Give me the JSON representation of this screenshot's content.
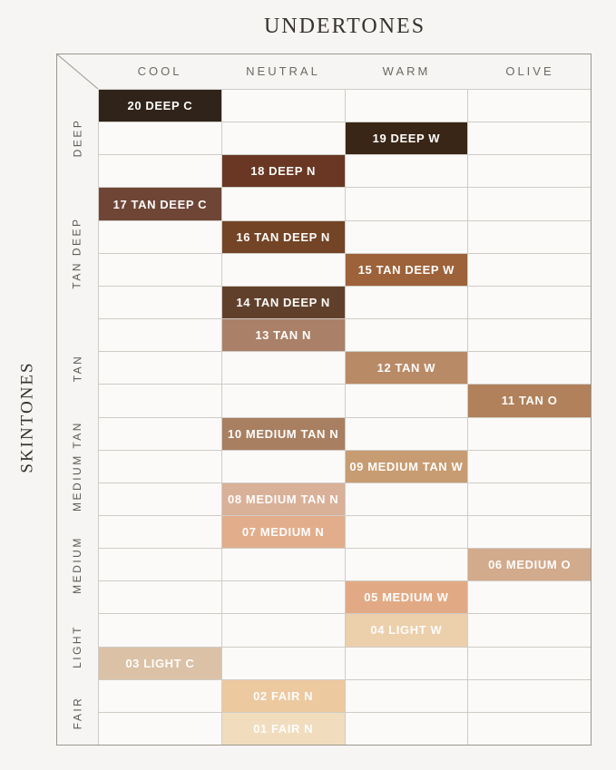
{
  "title": "UNDERTONES",
  "side_label": "SKINTONES",
  "chart_data": {
    "type": "heatmap",
    "title": "UNDERTONES",
    "ylabel": "SKINTONES",
    "columns": [
      "COOL",
      "NEUTRAL",
      "WARM",
      "OLIVE"
    ],
    "row_groups": [
      {
        "label": "DEEP",
        "rows": 3
      },
      {
        "label": "TAN DEEP",
        "rows": 4
      },
      {
        "label": "TAN",
        "rows": 3
      },
      {
        "label": "MEDIUM TAN",
        "rows": 3
      },
      {
        "label": "MEDIUM",
        "rows": 3
      },
      {
        "label": "LIGHT",
        "rows": 2
      },
      {
        "label": "FAIR",
        "rows": 2
      }
    ],
    "shades": [
      {
        "row": 1,
        "label": "20 DEEP C",
        "undertone": "COOL",
        "group": "DEEP",
        "color": "#30231a"
      },
      {
        "row": 2,
        "label": "19 DEEP W",
        "undertone": "WARM",
        "group": "DEEP",
        "color": "#3a2616"
      },
      {
        "row": 3,
        "label": "18 DEEP N",
        "undertone": "NEUTRAL",
        "group": "DEEP",
        "color": "#693723"
      },
      {
        "row": 4,
        "label": "17 TAN DEEP C",
        "undertone": "COOL",
        "group": "TAN DEEP",
        "color": "#6f4636"
      },
      {
        "row": 5,
        "label": "16 TAN DEEP N",
        "undertone": "NEUTRAL",
        "group": "TAN DEEP",
        "color": "#734426"
      },
      {
        "row": 6,
        "label": "15 TAN DEEP W",
        "undertone": "WARM",
        "group": "TAN DEEP",
        "color": "#9d6239"
      },
      {
        "row": 7,
        "label": "14 TAN DEEP N",
        "undertone": "NEUTRAL",
        "group": "TAN DEEP",
        "color": "#61402b"
      },
      {
        "row": 8,
        "label": "13 TAN N",
        "undertone": "NEUTRAL",
        "group": "TAN",
        "color": "#aa8068"
      },
      {
        "row": 9,
        "label": "12 TAN W",
        "undertone": "WARM",
        "group": "TAN",
        "color": "#b98a66"
      },
      {
        "row": 10,
        "label": "11 TAN O",
        "undertone": "OLIVE",
        "group": "TAN",
        "color": "#b0815a"
      },
      {
        "row": 11,
        "label": "10 MEDIUM TAN N",
        "undertone": "NEUTRAL",
        "group": "MEDIUM TAN",
        "color": "#a87f60"
      },
      {
        "row": 12,
        "label": "09 MEDIUM TAN W",
        "undertone": "WARM",
        "group": "MEDIUM TAN",
        "color": "#c79c72"
      },
      {
        "row": 13,
        "label": "08 MEDIUM TAN N",
        "undertone": "NEUTRAL",
        "group": "MEDIUM TAN",
        "color": "#d9b098"
      },
      {
        "row": 14,
        "label": "07 MEDIUM N",
        "undertone": "NEUTRAL",
        "group": "MEDIUM",
        "color": "#e2ad8b"
      },
      {
        "row": 15,
        "label": "06 MEDIUM O",
        "undertone": "OLIVE",
        "group": "MEDIUM",
        "color": "#d2aa8c"
      },
      {
        "row": 16,
        "label": "05 MEDIUM W",
        "undertone": "WARM",
        "group": "MEDIUM",
        "color": "#e2aa84"
      },
      {
        "row": 17,
        "label": "04 LIGHT W",
        "undertone": "WARM",
        "group": "LIGHT",
        "color": "#eccfab"
      },
      {
        "row": 18,
        "label": "03 LIGHT C",
        "undertone": "COOL",
        "group": "LIGHT",
        "color": "#dbc2a6"
      },
      {
        "row": 19,
        "label": "02 FAIR N",
        "undertone": "NEUTRAL",
        "group": "FAIR",
        "color": "#edc9a0"
      },
      {
        "row": 20,
        "label": "01 FAIR N",
        "undertone": "NEUTRAL",
        "group": "FAIR",
        "color": "#f1ddbe"
      }
    ],
    "layout": {
      "legend": "none",
      "grid": "on",
      "grid_line_color": "#cfccc6",
      "frame_color": "#9c968e",
      "background": "#f6f5f3",
      "cell_background": "#fbfaf8",
      "swatch_text_color": "#fdfdfc"
    }
  }
}
